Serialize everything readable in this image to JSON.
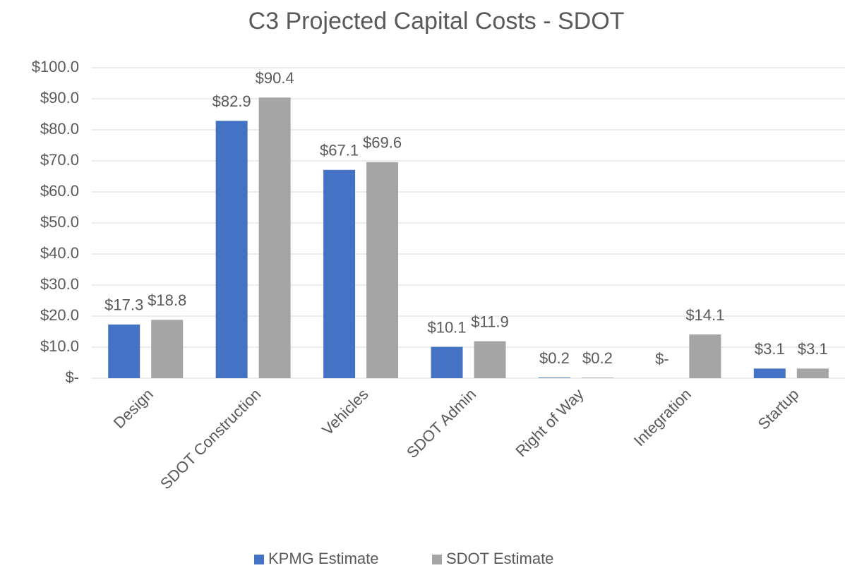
{
  "chart_data": {
    "type": "bar",
    "title": "C3 Projected Capital Costs - SDOT",
    "categories": [
      "Design",
      "SDOT Construction",
      "Vehicles",
      "SDOT Admin",
      "Right of Way",
      "Integration",
      "Startup"
    ],
    "series": [
      {
        "name": "KPMG Estimate",
        "color": "#4472c4",
        "values": [
          17.3,
          82.9,
          67.1,
          10.1,
          0.2,
          0,
          3.1
        ],
        "value_labels": [
          "$17.3",
          "$82.9",
          "$67.1",
          "$10.1",
          "$0.2",
          "$-",
          "$3.1"
        ]
      },
      {
        "name": "SDOT Estimate",
        "color": "#a5a5a5",
        "values": [
          18.8,
          90.4,
          69.6,
          11.9,
          0.2,
          14.1,
          3.1
        ],
        "value_labels": [
          "$18.8",
          "$90.4",
          "$69.6",
          "$11.9",
          "$0.2",
          "$14.1",
          "$3.1"
        ]
      }
    ],
    "ylim": [
      0,
      100
    ],
    "yticks": [
      {
        "value": 0,
        "label": "$-"
      },
      {
        "value": 10,
        "label": "$10.0"
      },
      {
        "value": 20,
        "label": "$20.0"
      },
      {
        "value": 30,
        "label": "$30.0"
      },
      {
        "value": 40,
        "label": "$40.0"
      },
      {
        "value": 50,
        "label": "$50.0"
      },
      {
        "value": 60,
        "label": "$60.0"
      },
      {
        "value": 70,
        "label": "$70.0"
      },
      {
        "value": 80,
        "label": "$80.0"
      },
      {
        "value": 90,
        "label": "$90.0"
      },
      {
        "value": 100,
        "label": "$100.0"
      }
    ],
    "grid": true,
    "legend": "bottom"
  }
}
